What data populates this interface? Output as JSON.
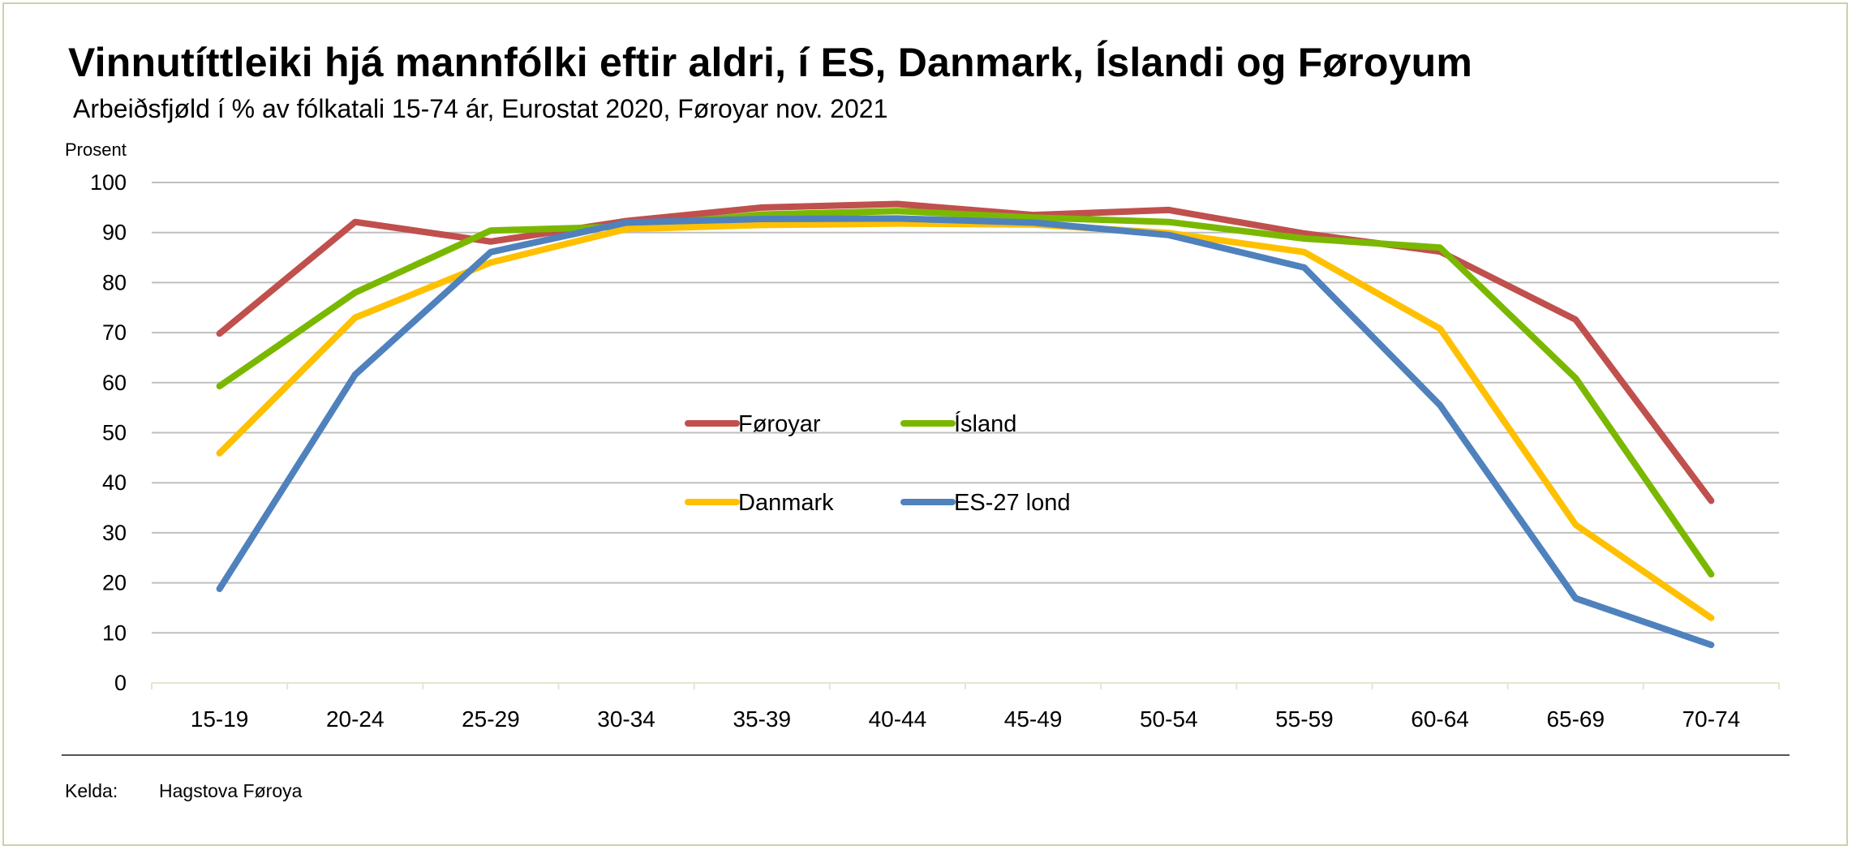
{
  "chart_data": {
    "type": "line",
    "title": "Vinnutíttleiki hjá mannfólki eftir aldri, í ES, Danmark, Íslandi og Føroyum",
    "subtitle": "Arbeiðsfjøld í % av fólkatali 15-74 ár, Eurostat 2020, Føroyar nov. 2021",
    "ylabel": "Prosent",
    "xlabel": "",
    "ylim": [
      0,
      100
    ],
    "yticks": [
      0,
      10,
      20,
      30,
      40,
      50,
      60,
      70,
      80,
      90,
      100
    ],
    "grid": true,
    "legend_position": "center",
    "categories": [
      "15-19",
      "20-24",
      "25-29",
      "30-34",
      "35-39",
      "40-44",
      "45-49",
      "50-54",
      "55-59",
      "60-64",
      "65-69",
      "70-74"
    ],
    "series": [
      {
        "name": "Føroyar",
        "color": "#c0504d",
        "values": [
          69.8,
          92.1,
          88.2,
          92.3,
          95.0,
          95.7,
          93.5,
          94.5,
          89.8,
          86.2,
          72.6,
          36.4
        ]
      },
      {
        "name": "Ísland",
        "color": "#7ab800",
        "values": [
          59.3,
          78.0,
          90.4,
          91.2,
          93.6,
          94.3,
          93.0,
          92.1,
          88.8,
          87.0,
          60.9,
          21.7
        ]
      },
      {
        "name": "Danmark",
        "color": "#ffc000",
        "values": [
          45.9,
          73.0,
          84.0,
          90.7,
          91.5,
          91.8,
          91.6,
          89.9,
          86.1,
          70.8,
          31.6,
          13.0
        ]
      },
      {
        "name": "ES-27 lond",
        "color": "#4f81bd",
        "values": [
          18.8,
          61.6,
          86.1,
          92.0,
          92.7,
          92.8,
          92.0,
          89.5,
          83.0,
          55.5,
          16.9,
          7.6
        ]
      }
    ]
  },
  "footer": {
    "source_label": "Kelda:",
    "source_value": "Hagstova Føroya"
  }
}
